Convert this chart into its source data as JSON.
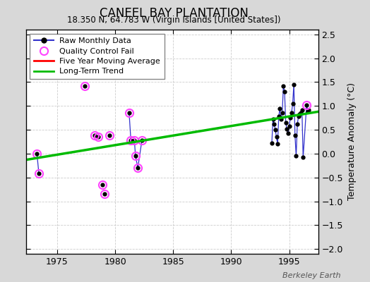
{
  "title": "CANEEL BAY PLANTATION",
  "subtitle": "18.350 N, 64.783 W (Virgin Islands [United States])",
  "ylabel": "Temperature Anomaly (°C)",
  "watermark": "Berkeley Earth",
  "ylim": [
    -2.1,
    2.6
  ],
  "xlim": [
    1972.3,
    1997.5
  ],
  "yticks": [
    -2,
    -1.5,
    -1,
    -0.5,
    0,
    0.5,
    1,
    1.5,
    2,
    2.5
  ],
  "xticks": [
    1975,
    1980,
    1985,
    1990,
    1995
  ],
  "bg_color": "#d8d8d8",
  "plot_bg_color": "#ffffff",
  "raw_segments": [
    [
      [
        1973.25,
        0.0
      ],
      [
        1973.42,
        -0.42
      ]
    ],
    [
      [
        1977.4,
        1.42
      ]
    ],
    [
      [
        1978.25,
        0.38
      ],
      [
        1978.5,
        0.35
      ]
    ],
    [
      [
        1978.9,
        -0.65
      ]
    ],
    [
      [
        1979.1,
        -0.85
      ]
    ],
    [
      [
        1979.5,
        0.38
      ]
    ],
    [
      [
        1981.2,
        0.85
      ],
      [
        1981.35,
        0.28
      ]
    ],
    [
      [
        1981.65,
        0.28
      ],
      [
        1981.75,
        -0.05
      ],
      [
        1981.95,
        -0.3
      ],
      [
        1982.3,
        0.28
      ]
    ],
    [
      [
        1993.5,
        0.22
      ],
      [
        1993.6,
        0.72
      ],
      [
        1993.7,
        0.62
      ],
      [
        1993.8,
        0.5
      ],
      [
        1993.9,
        0.35
      ],
      [
        1994.0,
        0.2
      ],
      [
        1994.1,
        0.78
      ],
      [
        1994.2,
        0.95
      ],
      [
        1994.3,
        0.72
      ],
      [
        1994.4,
        0.85
      ],
      [
        1994.5,
        1.42
      ],
      [
        1994.6,
        1.3
      ],
      [
        1994.7,
        0.65
      ],
      [
        1994.8,
        0.52
      ],
      [
        1994.9,
        0.42
      ],
      [
        1995.0,
        0.58
      ],
      [
        1995.1,
        0.75
      ],
      [
        1995.2,
        0.85
      ],
      [
        1995.3,
        1.05
      ],
      [
        1995.4,
        1.45
      ],
      [
        1995.5,
        0.38
      ],
      [
        1995.6,
        -0.05
      ],
      [
        1995.7,
        0.62
      ],
      [
        1995.8,
        0.78
      ],
      [
        1995.9,
        0.82
      ],
      [
        1996.0,
        0.85
      ],
      [
        1996.1,
        0.92
      ],
      [
        1996.2,
        -0.08
      ],
      [
        1996.5,
        1.02
      ],
      [
        1996.6,
        0.88
      ],
      [
        1996.7,
        0.92
      ]
    ]
  ],
  "all_dots": [
    [
      1973.25,
      0.0
    ],
    [
      1973.42,
      -0.42
    ],
    [
      1977.4,
      1.42
    ],
    [
      1978.25,
      0.38
    ],
    [
      1978.5,
      0.35
    ],
    [
      1978.9,
      -0.65
    ],
    [
      1979.1,
      -0.85
    ],
    [
      1979.5,
      0.38
    ],
    [
      1981.2,
      0.85
    ],
    [
      1981.35,
      0.28
    ],
    [
      1981.65,
      0.28
    ],
    [
      1981.75,
      -0.05
    ],
    [
      1981.95,
      -0.3
    ],
    [
      1982.3,
      0.28
    ],
    [
      1993.5,
      0.22
    ],
    [
      1993.6,
      0.72
    ],
    [
      1993.7,
      0.62
    ],
    [
      1993.8,
      0.5
    ],
    [
      1993.9,
      0.35
    ],
    [
      1994.0,
      0.2
    ],
    [
      1994.1,
      0.78
    ],
    [
      1994.2,
      0.95
    ],
    [
      1994.3,
      0.72
    ],
    [
      1994.4,
      0.85
    ],
    [
      1994.5,
      1.42
    ],
    [
      1994.6,
      1.3
    ],
    [
      1994.7,
      0.65
    ],
    [
      1994.8,
      0.52
    ],
    [
      1994.9,
      0.42
    ],
    [
      1995.0,
      0.58
    ],
    [
      1995.1,
      0.75
    ],
    [
      1995.2,
      0.85
    ],
    [
      1995.3,
      1.05
    ],
    [
      1995.4,
      1.45
    ],
    [
      1995.5,
      0.38
    ],
    [
      1995.6,
      -0.05
    ],
    [
      1995.7,
      0.62
    ],
    [
      1995.8,
      0.78
    ],
    [
      1995.9,
      0.82
    ],
    [
      1996.0,
      0.85
    ],
    [
      1996.1,
      0.92
    ],
    [
      1996.2,
      -0.08
    ],
    [
      1996.5,
      1.02
    ],
    [
      1996.6,
      0.88
    ],
    [
      1996.7,
      0.92
    ]
  ],
  "qc_fail_data": [
    [
      1973.25,
      0.0
    ],
    [
      1973.42,
      -0.42
    ],
    [
      1977.4,
      1.42
    ],
    [
      1978.25,
      0.38
    ],
    [
      1978.5,
      0.35
    ],
    [
      1978.9,
      -0.65
    ],
    [
      1979.1,
      -0.85
    ],
    [
      1979.5,
      0.38
    ],
    [
      1981.2,
      0.85
    ],
    [
      1981.35,
      0.28
    ],
    [
      1981.65,
      0.28
    ],
    [
      1981.75,
      -0.05
    ],
    [
      1981.95,
      -0.3
    ],
    [
      1982.3,
      0.28
    ],
    [
      1996.5,
      1.02
    ]
  ],
  "trend_x": [
    1972.3,
    1997.5
  ],
  "trend_y": [
    -0.13,
    0.88
  ],
  "trend_color": "#00bb00",
  "raw_line_color": "#3333cc",
  "raw_dot_color": "#000000",
  "qc_color": "#ff44ff",
  "moving_avg_color": "#ff0000",
  "grid_color": "#cccccc"
}
